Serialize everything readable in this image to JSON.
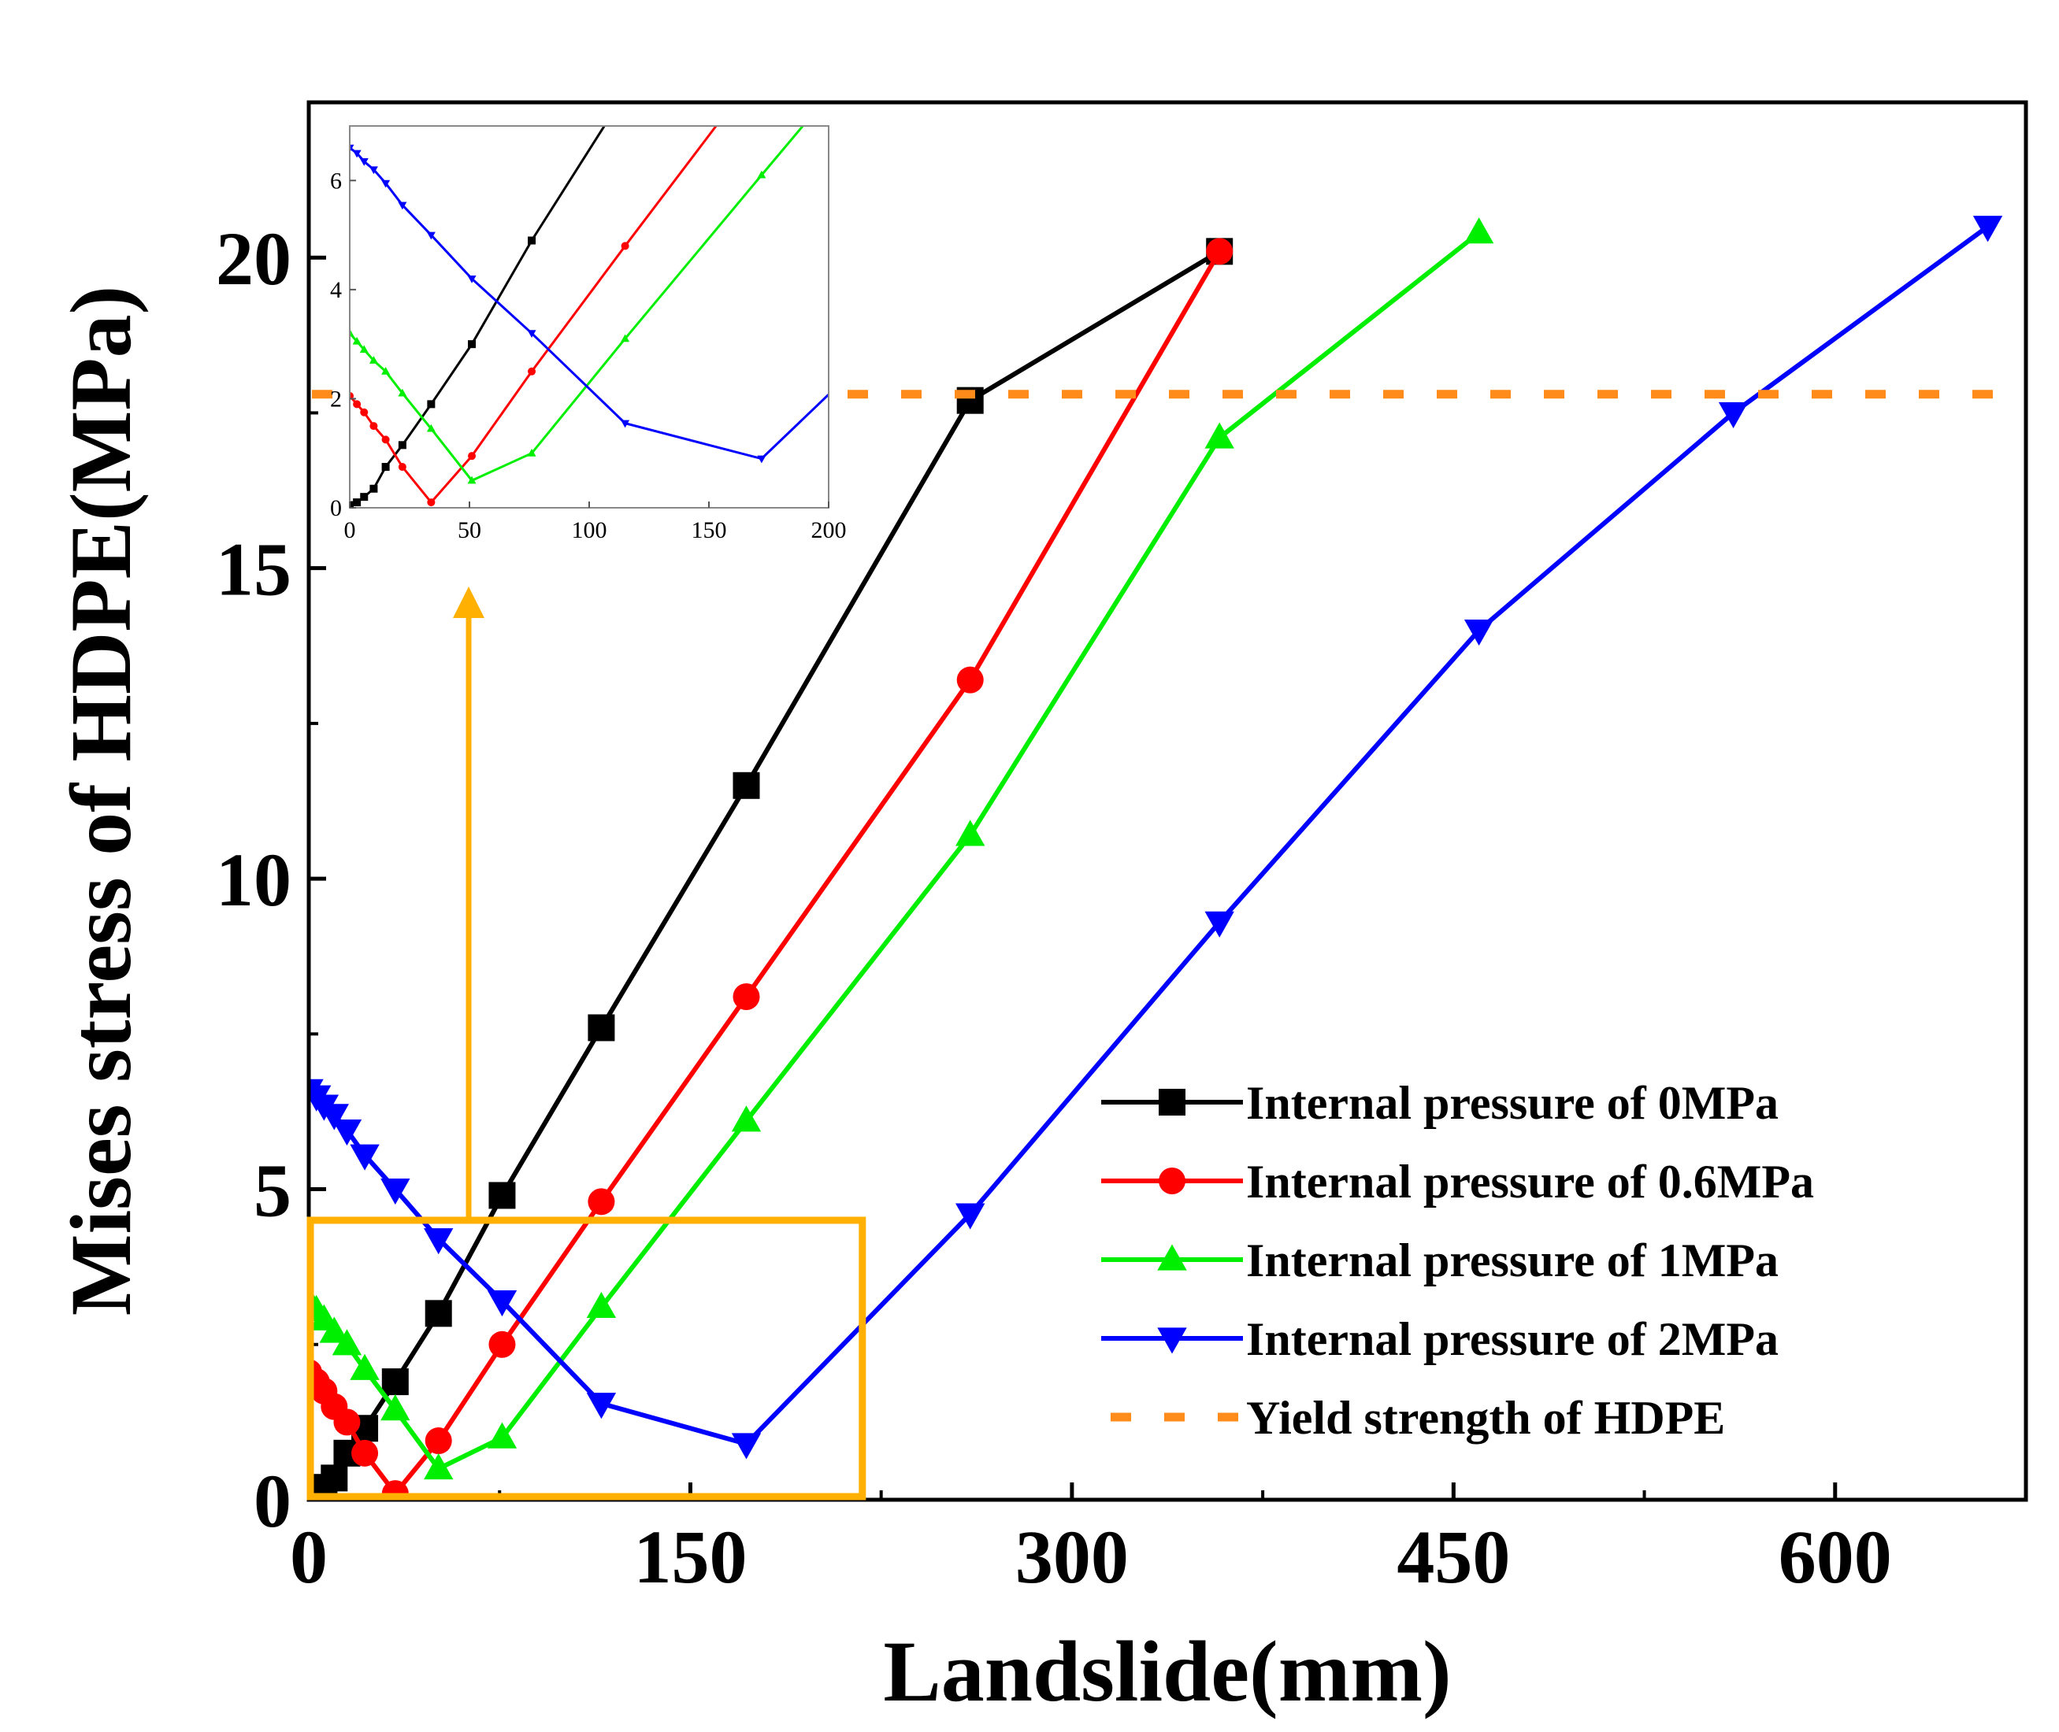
{
  "chart_data": {
    "type": "line",
    "title": "",
    "xlabel": "Landslide(mm)",
    "ylabel": "Mises stress of HDPE(MPa)",
    "xlim": [
      0,
      675
    ],
    "ylim": [
      0,
      22.5
    ],
    "xticks": [
      "0",
      "150",
      "300",
      "450",
      "600"
    ],
    "xtick_values": [
      0,
      150,
      300,
      450,
      600
    ],
    "yticks": [
      "0",
      "5",
      "10",
      "15",
      "20"
    ],
    "ytick_values": [
      0,
      5,
      10,
      15,
      20
    ],
    "grid": false,
    "legend_position": "bottom-right",
    "series": [
      {
        "name": "Internal pressure of 0MPa",
        "color": "#000000",
        "marker": "square",
        "x": [
          0,
          3,
          6,
          10,
          15,
          22,
          34,
          51,
          76,
          115,
          172,
          260,
          358
        ],
        "y": [
          0.05,
          0.1,
          0.2,
          0.35,
          0.75,
          1.15,
          1.9,
          3.0,
          4.9,
          7.6,
          11.5,
          17.7,
          20.1
        ]
      },
      {
        "name": "Internal pressure of 0.6MPa",
        "color": "#ff0000",
        "marker": "circle",
        "x": [
          0,
          3,
          6,
          10,
          15,
          22,
          34,
          51,
          76,
          115,
          172,
          260,
          358
        ],
        "y": [
          2.05,
          1.9,
          1.75,
          1.5,
          1.25,
          0.75,
          0.1,
          0.95,
          2.5,
          4.8,
          8.1,
          13.2,
          20.1
        ]
      },
      {
        "name": "Internal pressure of 1MPa",
        "color": "#00ee00",
        "marker": "triangle-up",
        "x": [
          0,
          3,
          6,
          10,
          15,
          22,
          34,
          51,
          76,
          115,
          172,
          260,
          358,
          460
        ],
        "y": [
          3.2,
          3.05,
          2.9,
          2.7,
          2.5,
          2.1,
          1.45,
          0.5,
          1.0,
          3.1,
          6.1,
          10.7,
          17.1,
          20.4
        ]
      },
      {
        "name": "Internal pressure of 2MPa",
        "color": "#0000ff",
        "marker": "triangle-down",
        "x": [
          0,
          3,
          6,
          10,
          15,
          22,
          34,
          51,
          76,
          115,
          172,
          260,
          358,
          460,
          560,
          660
        ],
        "y": [
          6.6,
          6.5,
          6.35,
          6.2,
          5.95,
          5.55,
          5.0,
          4.2,
          3.2,
          1.55,
          0.9,
          4.6,
          9.3,
          14.0,
          17.5,
          20.5
        ]
      }
    ],
    "reference_line": {
      "name": "Yield strength of HDPE",
      "color": "#ff8c1a",
      "y": 17.8
    },
    "inset": {
      "xlim": [
        0,
        200
      ],
      "ylim": [
        0,
        7
      ],
      "xticks": [
        "0",
        "50",
        "100",
        "150",
        "200"
      ],
      "xtick_values": [
        0,
        50,
        100,
        150,
        200
      ],
      "yticks": [
        "0",
        "2",
        "4",
        "6"
      ],
      "ytick_values": [
        0,
        2,
        4,
        6
      ]
    },
    "zoom_box": {
      "color": "#ffb000",
      "x_range": [
        0,
        217
      ],
      "y_range": [
        0,
        4.5
      ]
    }
  }
}
